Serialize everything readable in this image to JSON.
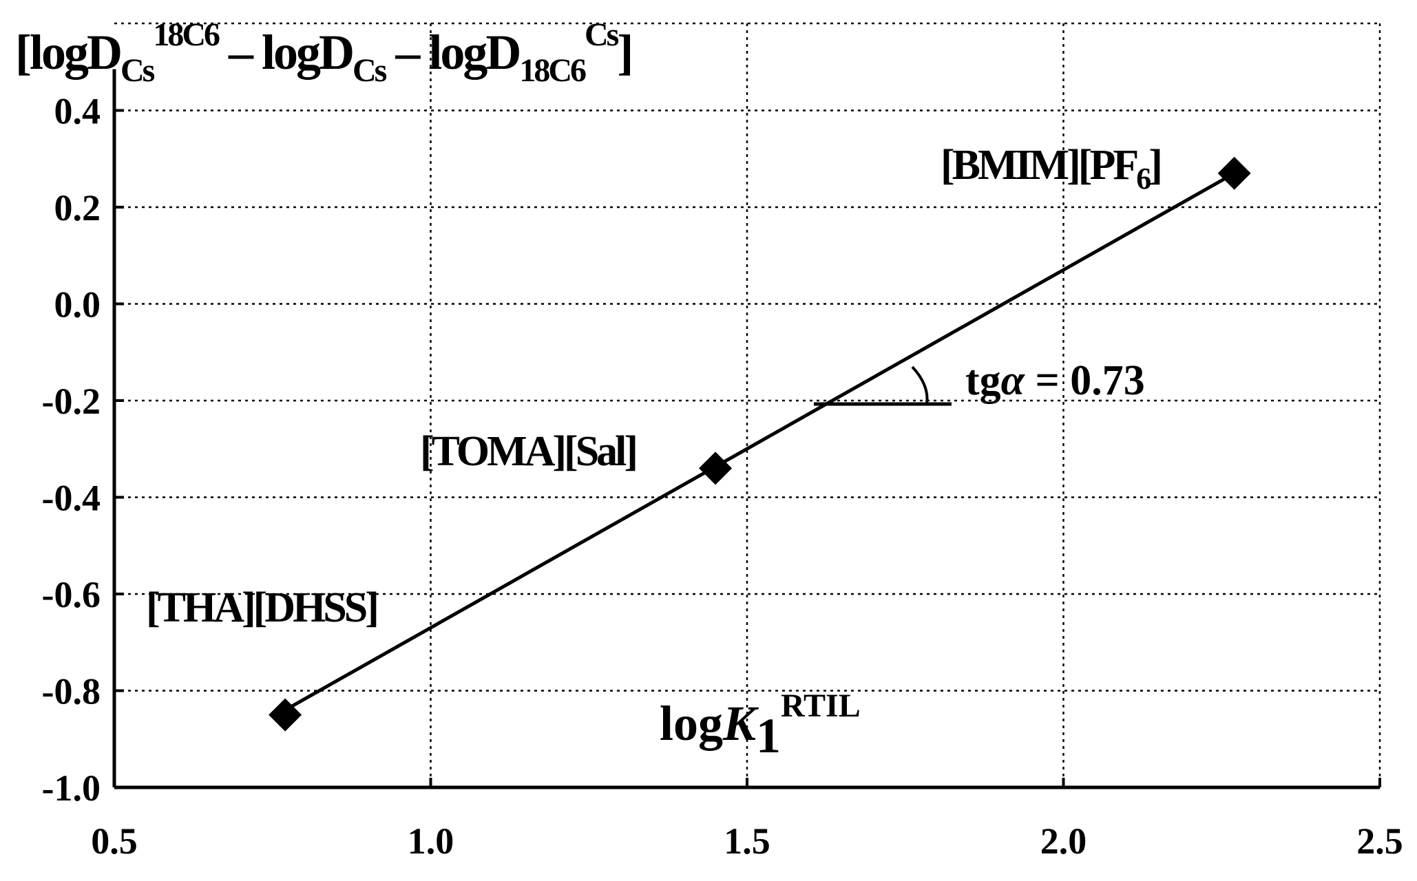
{
  "chart_data": {
    "type": "scatter",
    "xlim": [
      0.5,
      2.5
    ],
    "ylim": [
      -1.0,
      0.4
    ],
    "x_ticks": [
      "0.5",
      "1.0",
      "1.5",
      "2.0",
      "2.5"
    ],
    "y_ticks": [
      "-1.0",
      "-0.8",
      "-0.6",
      "-0.4",
      "-0.2",
      "0.0",
      "0.2",
      "0.4"
    ],
    "grid": true,
    "ylabel": {
      "open": "[logD",
      "sub1": "Cs",
      "sup1": "18C6",
      "mid": " – logD",
      "sub2": "Cs",
      "mid2": " – logD",
      "sub3": "18C6",
      "sup3": "Cs",
      "close": "]"
    },
    "xlabel": {
      "prefix": "log",
      "var": "K",
      "sub": "1",
      "sup": "RTIL"
    },
    "series": [
      {
        "marker": "diamond",
        "points": [
          {
            "x": 0.77,
            "y": -0.85,
            "label": "[THA][DHSS]"
          },
          {
            "x": 1.45,
            "y": -0.34,
            "label": "[TOMA][Sal]"
          },
          {
            "x": 2.27,
            "y": 0.27,
            "label": "[BMIM][PF",
            "label_sub": "6",
            "label_close": "]"
          }
        ]
      }
    ],
    "fit_line": {
      "x": [
        0.77,
        2.27
      ],
      "y": [
        -0.84,
        0.27
      ]
    },
    "annotation": {
      "prefix": "tg",
      "var": "α",
      "suffix": " = 0.73"
    }
  }
}
